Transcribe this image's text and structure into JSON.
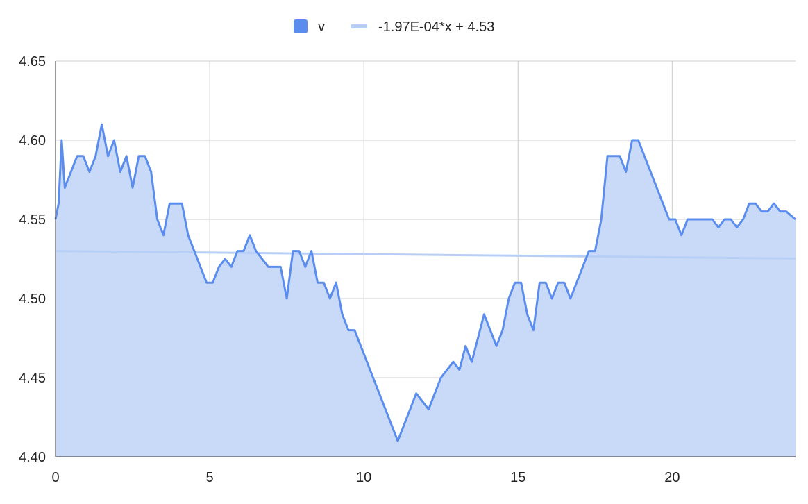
{
  "chart_data": {
    "type": "area",
    "title": "",
    "xlabel": "",
    "ylabel": "",
    "xlim": [
      0,
      24
    ],
    "ylim": [
      4.4,
      4.65
    ],
    "x_ticks": [
      "0",
      "5",
      "10",
      "15",
      "20"
    ],
    "y_ticks": [
      "4.40",
      "4.45",
      "4.50",
      "4.55",
      "4.60",
      "4.65"
    ],
    "grid": true,
    "legend_position": "top-center",
    "series": [
      {
        "name": "v",
        "color": "#5b8def",
        "fill_color": "#c9daf8",
        "x": [
          0,
          0.1,
          0.2,
          0.3,
          0.5,
          0.7,
          0.9,
          1.1,
          1.3,
          1.5,
          1.7,
          1.9,
          2.1,
          2.3,
          2.5,
          2.7,
          2.9,
          3.1,
          3.3,
          3.5,
          3.7,
          3.9,
          4.1,
          4.3,
          4.5,
          4.7,
          4.9,
          5.1,
          5.3,
          5.5,
          5.7,
          5.9,
          6.1,
          6.3,
          6.5,
          6.7,
          6.9,
          7.1,
          7.3,
          7.5,
          7.7,
          7.9,
          8.1,
          8.3,
          8.5,
          8.7,
          8.9,
          9.1,
          9.3,
          9.5,
          9.7,
          9.9,
          10.1,
          10.3,
          10.5,
          10.7,
          10.9,
          11.1,
          11.3,
          11.5,
          11.7,
          11.9,
          12.1,
          12.3,
          12.5,
          12.7,
          12.9,
          13.1,
          13.3,
          13.5,
          13.7,
          13.9,
          14.1,
          14.3,
          14.5,
          14.7,
          14.9,
          15.1,
          15.3,
          15.5,
          15.7,
          15.9,
          16.1,
          16.3,
          16.5,
          16.7,
          16.9,
          17.1,
          17.3,
          17.5,
          17.7,
          17.9,
          18.1,
          18.3,
          18.5,
          18.7,
          18.9,
          19.1,
          19.3,
          19.5,
          19.7,
          19.9,
          20.1,
          20.3,
          20.5,
          20.7,
          20.9,
          21.1,
          21.3,
          21.5,
          21.7,
          21.9,
          22.1,
          22.3,
          22.5,
          22.7,
          22.9,
          23.1,
          23.3,
          23.5,
          23.7,
          24.0
        ],
        "y": [
          4.55,
          4.56,
          4.6,
          4.57,
          4.58,
          4.59,
          4.59,
          4.58,
          4.59,
          4.61,
          4.59,
          4.6,
          4.58,
          4.59,
          4.57,
          4.59,
          4.59,
          4.58,
          4.55,
          4.54,
          4.56,
          4.56,
          4.56,
          4.54,
          4.53,
          4.52,
          4.51,
          4.51,
          4.52,
          4.525,
          4.52,
          4.53,
          4.53,
          4.54,
          4.53,
          4.525,
          4.52,
          4.52,
          4.52,
          4.5,
          4.53,
          4.53,
          4.52,
          4.53,
          4.51,
          4.51,
          4.5,
          4.51,
          4.49,
          4.48,
          4.48,
          4.47,
          4.46,
          4.45,
          4.44,
          4.43,
          4.42,
          4.41,
          4.42,
          4.43,
          4.44,
          4.435,
          4.43,
          4.44,
          4.45,
          4.455,
          4.46,
          4.455,
          4.47,
          4.46,
          4.475,
          4.49,
          4.48,
          4.47,
          4.48,
          4.5,
          4.51,
          4.51,
          4.49,
          4.48,
          4.51,
          4.51,
          4.5,
          4.51,
          4.51,
          4.5,
          4.51,
          4.52,
          4.53,
          4.53,
          4.55,
          4.59,
          4.59,
          4.59,
          4.58,
          4.6,
          4.6,
          4.59,
          4.58,
          4.57,
          4.56,
          4.55,
          4.55,
          4.54,
          4.55,
          4.55,
          4.55,
          4.55,
          4.55,
          4.545,
          4.55,
          4.55,
          4.545,
          4.55,
          4.56,
          4.56,
          4.555,
          4.555,
          4.56,
          4.555,
          4.555,
          4.55
        ]
      },
      {
        "name": "-1.97E-04*x + 4.53",
        "color": "#b7cff7",
        "x": [
          0,
          24
        ],
        "y": [
          4.53,
          4.525272
        ]
      }
    ]
  }
}
